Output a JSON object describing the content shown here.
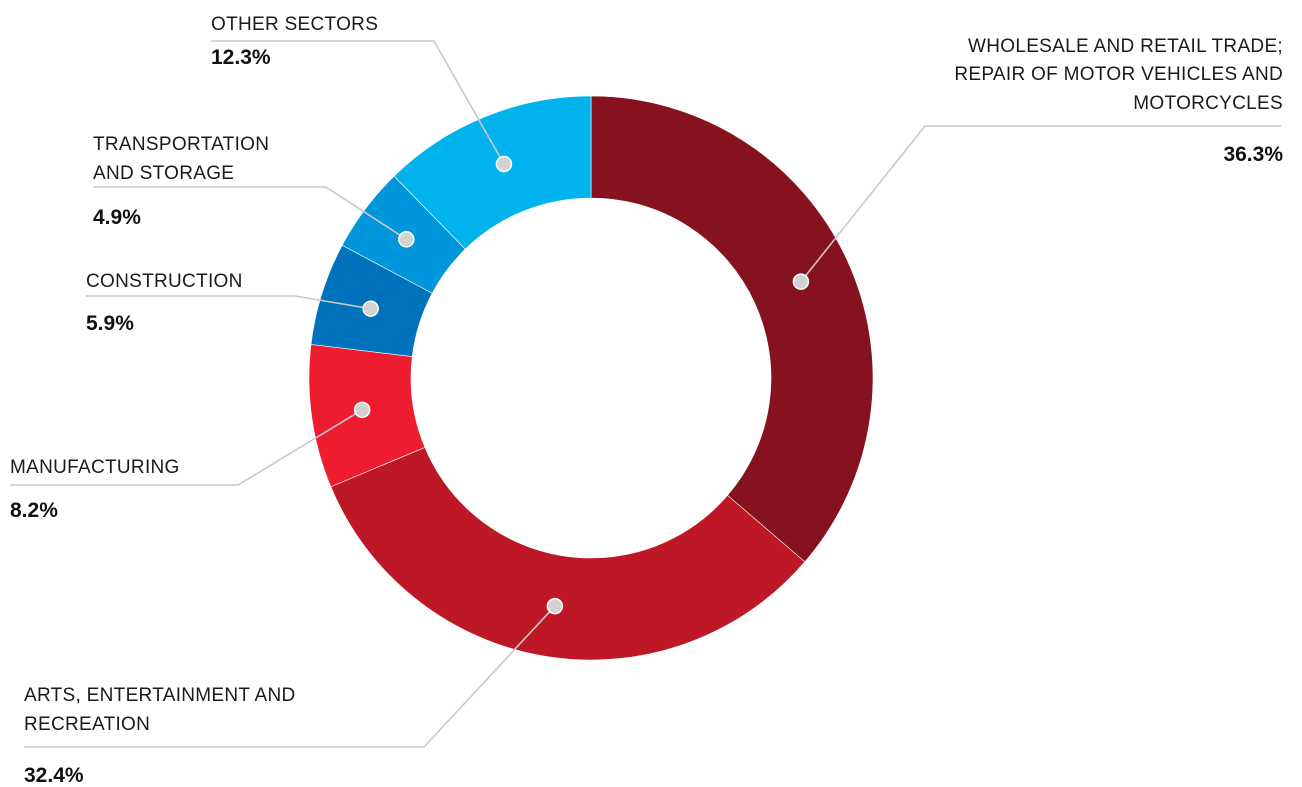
{
  "chart_data": {
    "type": "pie",
    "variant": "donut",
    "categories": [
      "WHOLESALE AND RETAIL TRADE; REPAIR OF MOTOR VEHICLES AND MOTORCYCLES",
      "ARTS, ENTERTAINMENT AND RECREATION",
      "MANUFACTURING",
      "CONSTRUCTION",
      "TRANSPORTATION AND STORAGE",
      "OTHER SECTORS"
    ],
    "values": [
      36.3,
      32.4,
      8.2,
      5.9,
      4.9,
      12.3
    ],
    "value_labels": [
      "36.3%",
      "32.4%",
      "8.2%",
      "5.9%",
      "4.9%",
      "12.3%"
    ],
    "label_lines": [
      [
        "WHOLESALE AND RETAIL TRADE;",
        "REPAIR OF MOTOR VEHICLES AND",
        "MOTORCYCLES"
      ],
      [
        "ARTS, ENTERTAINMENT AND",
        "RECREATION"
      ],
      [
        "MANUFACTURING"
      ],
      [
        "CONSTRUCTION"
      ],
      [
        "TRANSPORTATION",
        "AND STORAGE"
      ],
      [
        "OTHER SECTORS"
      ]
    ],
    "colors": [
      "#86121f",
      "#be1827",
      "#ed1c2e",
      "#0072bc",
      "#0096dc",
      "#00b3ec"
    ],
    "start_position": "12 o'clock",
    "direction": "clockwise",
    "legend": "none",
    "title": "",
    "subtitle": ""
  }
}
